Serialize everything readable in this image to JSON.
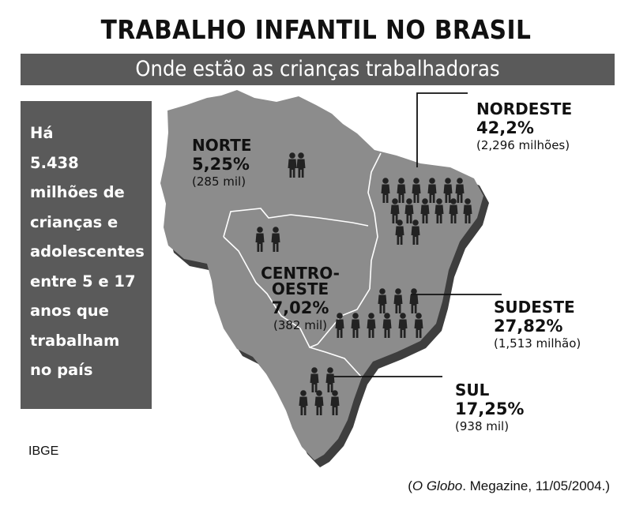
{
  "title": "TRABALHO INFANTIL NO BRASIL",
  "subtitle": "Onde estão as crianças trabalhadoras",
  "sidebar_text": "Há\n5.438\nmilhões de\ncrianças e\nadolescentes\nentre 5 e 17\nanos que\ntrabalham\nno país",
  "source": "IBGE",
  "citation": {
    "publication": "O Globo",
    "rest": ". Megazine, 11/05/2004.)",
    "open": "("
  },
  "colors": {
    "map_fill": "#8c8c8c",
    "map_shadow": "#3e3e3e",
    "banner": "#5a5a5a",
    "figure": "#222222"
  },
  "chart_data": {
    "type": "map",
    "title": "TRABALHO INFANTIL NO BRASIL",
    "subtitle": "Onde estão as crianças trabalhadoras",
    "regions": [
      {
        "name": "NORTE",
        "percent_label": "5,25%",
        "absolute_label": "(285 mil)",
        "percent": 5.25,
        "children_thousands": 285,
        "icons": 2
      },
      {
        "name": "NORDESTE",
        "percent_label": "42,2%",
        "absolute_label": "(2,296 milhões)",
        "percent": 42.2,
        "children_thousands": 2296,
        "icons": 16
      },
      {
        "name": "CENTRO-OESTE",
        "percent_label": "7,02%",
        "absolute_label": "(382 mil)",
        "percent": 7.02,
        "children_thousands": 382,
        "icons": 2
      },
      {
        "name": "SUDESTE",
        "percent_label": "27,82%",
        "absolute_label": "(1,513 milhão)",
        "percent": 27.82,
        "children_thousands": 1513,
        "icons": 10
      },
      {
        "name": "SUL",
        "percent_label": "17,25%",
        "absolute_label": "(938 mil)",
        "percent": 17.25,
        "children_thousands": 938,
        "icons": 5
      }
    ]
  }
}
